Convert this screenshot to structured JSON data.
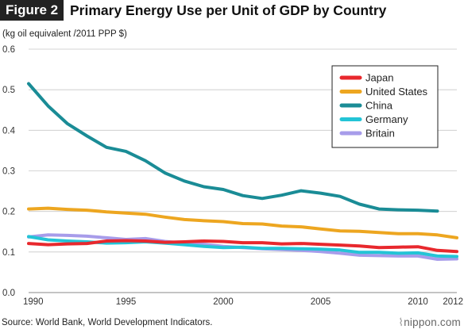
{
  "header": {
    "badge": "Figure 2",
    "title": "Primary Energy Use per Unit of GDP by Country",
    "units": "(kg oil equivalent /2011 PPP $)"
  },
  "footer": {
    "source": "Source: World Bank, World Development Indicators.",
    "brand": "nippon.com"
  },
  "chart_data": {
    "type": "line",
    "title": "Primary Energy Use per Unit of GDP by Country",
    "ylabel": "(kg oil equivalent /2011 PPP $)",
    "xlabel": "",
    "xlim": [
      1990,
      2012
    ],
    "ylim": [
      0,
      0.6
    ],
    "x_ticks": [
      1990,
      1995,
      2000,
      2005,
      2010,
      2012
    ],
    "y_ticks": [
      0,
      0.1,
      0.2,
      0.3,
      0.4,
      0.5,
      0.6
    ],
    "y_tick_labels": [
      "0.0",
      "0.1",
      "0.2",
      "0.3",
      "0.4",
      "0.5",
      "0.6"
    ],
    "grid": "horizontal",
    "legend_position": "top-right",
    "x": [
      1990,
      1991,
      1992,
      1993,
      1994,
      1995,
      1996,
      1997,
      1998,
      1999,
      2000,
      2001,
      2002,
      2003,
      2004,
      2005,
      2006,
      2007,
      2008,
      2009,
      2010,
      2011,
      2012
    ],
    "series": [
      {
        "name": "Japan",
        "color": "#e8282d",
        "values": [
          0.121,
          0.118,
          0.12,
          0.121,
          0.127,
          0.128,
          0.127,
          0.124,
          0.125,
          0.127,
          0.126,
          0.123,
          0.123,
          0.12,
          0.121,
          0.119,
          0.117,
          0.115,
          0.111,
          0.112,
          0.113,
          0.104,
          0.101
        ]
      },
      {
        "name": "United States",
        "color": "#eda620",
        "values": [
          0.206,
          0.208,
          0.205,
          0.203,
          0.199,
          0.196,
          0.193,
          0.186,
          0.18,
          0.177,
          0.175,
          0.17,
          0.169,
          0.164,
          0.162,
          0.157,
          0.152,
          0.151,
          0.148,
          0.145,
          0.145,
          0.142,
          0.135
        ]
      },
      {
        "name": "China",
        "color": "#1a8c96",
        "values": [
          0.515,
          0.46,
          0.416,
          0.386,
          0.358,
          0.348,
          0.325,
          0.295,
          0.275,
          0.261,
          0.254,
          0.239,
          0.232,
          0.24,
          0.251,
          0.245,
          0.237,
          0.218,
          0.206,
          0.204,
          0.203,
          0.201,
          null
        ]
      },
      {
        "name": "Germany",
        "color": "#23c4d6",
        "values": [
          0.138,
          0.13,
          0.127,
          0.125,
          0.122,
          0.123,
          0.125,
          0.122,
          0.118,
          0.114,
          0.111,
          0.112,
          0.109,
          0.109,
          0.108,
          0.107,
          0.105,
          0.099,
          0.099,
          0.097,
          0.098,
          0.09,
          0.089
        ]
      },
      {
        "name": "Britain",
        "color": "#a79cea",
        "values": [
          0.137,
          0.142,
          0.141,
          0.139,
          0.135,
          0.131,
          0.133,
          0.126,
          0.122,
          0.119,
          0.114,
          0.111,
          0.108,
          0.106,
          0.104,
          0.101,
          0.097,
          0.092,
          0.091,
          0.09,
          0.09,
          0.082,
          0.083
        ]
      }
    ]
  }
}
